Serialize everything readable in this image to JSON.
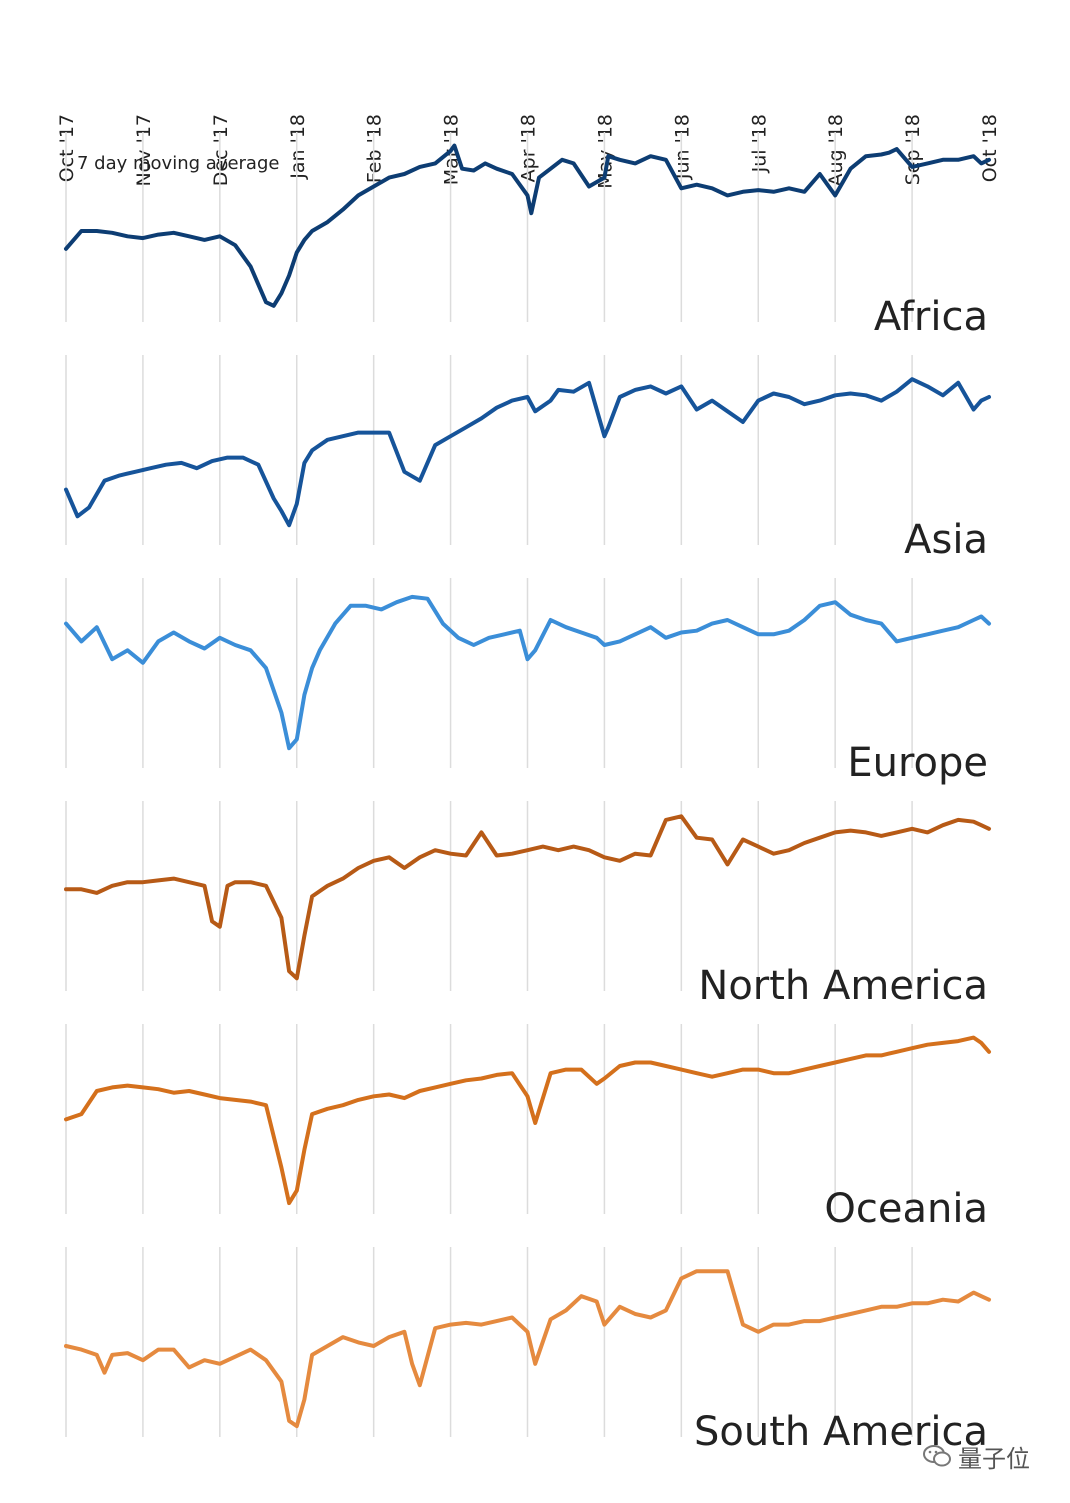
{
  "chart_data": {
    "type": "line",
    "note": "7 day moving average",
    "x_labels": [
      "Oct '17",
      "Nov '17",
      "Dec '17",
      "Jan '18",
      "Feb '18",
      "Mar '18",
      "Apr '18",
      "May '18",
      "Jun '18",
      "Jul '18",
      "Aug '18",
      "Sep '18",
      "Oct '18"
    ],
    "grid": "vertical",
    "y_range": [
      0,
      1
    ],
    "series": [
      {
        "name": "Africa",
        "color": "#0d3d73",
        "x": [
          0,
          0.2,
          0.4,
          0.6,
          0.8,
          1.0,
          1.2,
          1.4,
          1.6,
          1.8,
          2.0,
          2.2,
          2.4,
          2.6,
          2.7,
          2.8,
          2.9,
          3.0,
          3.1,
          3.2,
          3.4,
          3.6,
          3.8,
          4.0,
          4.2,
          4.4,
          4.6,
          4.8,
          5.0,
          5.05,
          5.15,
          5.3,
          5.45,
          5.6,
          5.8,
          6.0,
          6.05,
          6.15,
          6.3,
          6.45,
          6.6,
          6.8,
          7.0,
          7.05,
          7.2,
          7.4,
          7.6,
          7.8,
          8.0,
          8.2,
          8.4,
          8.6,
          8.8,
          9.0,
          9.2,
          9.4,
          9.6,
          9.8,
          10.0,
          10.2,
          10.4,
          10.6,
          10.7,
          10.8,
          11.0,
          11.2,
          11.4,
          11.6,
          11.8,
          11.9,
          12.0
        ],
        "y": [
          0.4,
          0.5,
          0.5,
          0.49,
          0.47,
          0.46,
          0.48,
          0.49,
          0.47,
          0.45,
          0.47,
          0.42,
          0.3,
          0.1,
          0.08,
          0.15,
          0.25,
          0.38,
          0.45,
          0.5,
          0.55,
          0.62,
          0.7,
          0.75,
          0.8,
          0.82,
          0.86,
          0.88,
          0.95,
          0.98,
          0.85,
          0.84,
          0.88,
          0.85,
          0.82,
          0.7,
          0.6,
          0.8,
          0.85,
          0.9,
          0.88,
          0.75,
          0.8,
          0.92,
          0.9,
          0.88,
          0.92,
          0.9,
          0.74,
          0.76,
          0.74,
          0.7,
          0.72,
          0.73,
          0.72,
          0.74,
          0.72,
          0.82,
          0.7,
          0.85,
          0.92,
          0.93,
          0.94,
          0.96,
          0.86,
          0.88,
          0.9,
          0.9,
          0.92,
          0.88,
          0.9
        ]
      },
      {
        "name": "Asia",
        "color": "#16549a",
        "x": [
          0,
          0.15,
          0.3,
          0.5,
          0.7,
          0.9,
          1.1,
          1.3,
          1.5,
          1.7,
          1.9,
          2.1,
          2.3,
          2.5,
          2.7,
          2.8,
          2.9,
          3.0,
          3.1,
          3.2,
          3.4,
          3.6,
          3.8,
          4.0,
          4.2,
          4.4,
          4.6,
          4.8,
          5.0,
          5.2,
          5.4,
          5.6,
          5.8,
          6.0,
          6.1,
          6.3,
          6.4,
          6.6,
          6.8,
          7.0,
          7.05,
          7.2,
          7.4,
          7.6,
          7.8,
          8.0,
          8.2,
          8.4,
          8.6,
          8.8,
          9.0,
          9.2,
          9.4,
          9.6,
          9.8,
          10.0,
          10.2,
          10.4,
          10.6,
          10.8,
          11.0,
          11.2,
          11.4,
          11.6,
          11.8,
          11.9,
          12.0
        ],
        "y": [
          0.3,
          0.15,
          0.2,
          0.35,
          0.38,
          0.4,
          0.42,
          0.44,
          0.45,
          0.42,
          0.46,
          0.48,
          0.48,
          0.44,
          0.25,
          0.18,
          0.1,
          0.22,
          0.45,
          0.52,
          0.58,
          0.6,
          0.62,
          0.62,
          0.62,
          0.4,
          0.35,
          0.55,
          0.6,
          0.65,
          0.7,
          0.76,
          0.8,
          0.82,
          0.74,
          0.8,
          0.86,
          0.85,
          0.9,
          0.6,
          0.65,
          0.82,
          0.86,
          0.88,
          0.84,
          0.88,
          0.75,
          0.8,
          0.74,
          0.68,
          0.8,
          0.84,
          0.82,
          0.78,
          0.8,
          0.83,
          0.84,
          0.83,
          0.8,
          0.85,
          0.92,
          0.88,
          0.83,
          0.9,
          0.75,
          0.8,
          0.82
        ]
      },
      {
        "name": "Europe",
        "color": "#3b8ed8",
        "x": [
          0,
          0.2,
          0.4,
          0.6,
          0.8,
          1.0,
          1.2,
          1.4,
          1.6,
          1.8,
          2.0,
          2.2,
          2.4,
          2.6,
          2.8,
          2.9,
          3.0,
          3.1,
          3.2,
          3.3,
          3.5,
          3.7,
          3.9,
          4.1,
          4.3,
          4.5,
          4.7,
          4.9,
          5.1,
          5.3,
          5.5,
          5.7,
          5.9,
          6.0,
          6.1,
          6.3,
          6.5,
          6.7,
          6.9,
          7.0,
          7.2,
          7.4,
          7.6,
          7.8,
          8.0,
          8.2,
          8.4,
          8.6,
          8.8,
          9.0,
          9.2,
          9.4,
          9.6,
          9.8,
          10.0,
          10.2,
          10.4,
          10.6,
          10.8,
          11.0,
          11.2,
          11.4,
          11.6,
          11.8,
          11.9,
          12.0
        ],
        "y": [
          0.8,
          0.7,
          0.78,
          0.6,
          0.65,
          0.58,
          0.7,
          0.75,
          0.7,
          0.66,
          0.72,
          0.68,
          0.65,
          0.55,
          0.3,
          0.1,
          0.15,
          0.4,
          0.55,
          0.65,
          0.8,
          0.9,
          0.9,
          0.88,
          0.92,
          0.95,
          0.94,
          0.8,
          0.72,
          0.68,
          0.72,
          0.74,
          0.76,
          0.6,
          0.65,
          0.82,
          0.78,
          0.75,
          0.72,
          0.68,
          0.7,
          0.74,
          0.78,
          0.72,
          0.75,
          0.76,
          0.8,
          0.82,
          0.78,
          0.74,
          0.74,
          0.76,
          0.82,
          0.9,
          0.92,
          0.85,
          0.82,
          0.8,
          0.7,
          0.72,
          0.74,
          0.76,
          0.78,
          0.82,
          0.84,
          0.8
        ]
      },
      {
        "name": "North America",
        "color": "#b75a16",
        "x": [
          0,
          0.2,
          0.4,
          0.6,
          0.8,
          1.0,
          1.2,
          1.4,
          1.6,
          1.8,
          1.9,
          2.0,
          2.1,
          2.2,
          2.4,
          2.6,
          2.8,
          2.9,
          3.0,
          3.1,
          3.2,
          3.4,
          3.6,
          3.8,
          4.0,
          4.2,
          4.4,
          4.6,
          4.8,
          5.0,
          5.2,
          5.4,
          5.6,
          5.8,
          6.0,
          6.2,
          6.4,
          6.6,
          6.8,
          7.0,
          7.2,
          7.4,
          7.6,
          7.8,
          8.0,
          8.2,
          8.4,
          8.6,
          8.8,
          9.0,
          9.2,
          9.4,
          9.6,
          9.8,
          10.0,
          10.2,
          10.4,
          10.6,
          10.8,
          11.0,
          11.2,
          11.4,
          11.6,
          11.8,
          11.9,
          12.0
        ],
        "y": [
          0.56,
          0.56,
          0.54,
          0.58,
          0.6,
          0.6,
          0.61,
          0.62,
          0.6,
          0.58,
          0.38,
          0.35,
          0.58,
          0.6,
          0.6,
          0.58,
          0.4,
          0.1,
          0.06,
          0.3,
          0.52,
          0.58,
          0.62,
          0.68,
          0.72,
          0.74,
          0.68,
          0.74,
          0.78,
          0.76,
          0.75,
          0.88,
          0.75,
          0.76,
          0.78,
          0.8,
          0.78,
          0.8,
          0.78,
          0.74,
          0.72,
          0.76,
          0.75,
          0.95,
          0.97,
          0.85,
          0.84,
          0.7,
          0.84,
          0.8,
          0.76,
          0.78,
          0.82,
          0.85,
          0.88,
          0.89,
          0.88,
          0.86,
          0.88,
          0.9,
          0.88,
          0.92,
          0.95,
          0.94,
          0.92,
          0.9
        ]
      },
      {
        "name": "Oceania",
        "color": "#d4701c",
        "x": [
          0,
          0.2,
          0.4,
          0.6,
          0.8,
          1.0,
          1.2,
          1.4,
          1.6,
          1.8,
          2.0,
          2.2,
          2.4,
          2.6,
          2.8,
          2.9,
          3.0,
          3.1,
          3.2,
          3.4,
          3.6,
          3.8,
          4.0,
          4.2,
          4.4,
          4.6,
          4.8,
          5.0,
          5.2,
          5.4,
          5.6,
          5.8,
          6.0,
          6.1,
          6.3,
          6.5,
          6.7,
          6.9,
          7.0,
          7.2,
          7.4,
          7.6,
          7.8,
          8.0,
          8.2,
          8.4,
          8.6,
          8.8,
          9.0,
          9.2,
          9.4,
          9.6,
          9.8,
          10.0,
          10.2,
          10.4,
          10.6,
          10.8,
          11.0,
          11.2,
          11.4,
          11.6,
          11.8,
          11.9,
          12.0
        ],
        "y": [
          0.52,
          0.55,
          0.68,
          0.7,
          0.71,
          0.7,
          0.69,
          0.67,
          0.68,
          0.66,
          0.64,
          0.63,
          0.62,
          0.6,
          0.25,
          0.05,
          0.12,
          0.35,
          0.55,
          0.58,
          0.6,
          0.63,
          0.65,
          0.66,
          0.64,
          0.68,
          0.7,
          0.72,
          0.74,
          0.75,
          0.77,
          0.78,
          0.65,
          0.5,
          0.78,
          0.8,
          0.8,
          0.72,
          0.75,
          0.82,
          0.84,
          0.84,
          0.82,
          0.8,
          0.78,
          0.76,
          0.78,
          0.8,
          0.8,
          0.78,
          0.78,
          0.8,
          0.82,
          0.84,
          0.86,
          0.88,
          0.88,
          0.9,
          0.92,
          0.94,
          0.95,
          0.96,
          0.98,
          0.95,
          0.9
        ]
      },
      {
        "name": "South America",
        "color": "#e58a3f",
        "x": [
          0,
          0.2,
          0.4,
          0.5,
          0.6,
          0.8,
          1.0,
          1.2,
          1.4,
          1.6,
          1.8,
          2.0,
          2.2,
          2.4,
          2.6,
          2.8,
          2.9,
          3.0,
          3.1,
          3.2,
          3.4,
          3.6,
          3.8,
          4.0,
          4.2,
          4.4,
          4.5,
          4.6,
          4.8,
          5.0,
          5.2,
          5.4,
          5.6,
          5.8,
          6.0,
          6.1,
          6.3,
          6.5,
          6.7,
          6.9,
          7.0,
          7.2,
          7.4,
          7.6,
          7.8,
          8.0,
          8.2,
          8.4,
          8.6,
          8.8,
          9.0,
          9.2,
          9.4,
          9.6,
          9.8,
          10.0,
          10.2,
          10.4,
          10.6,
          10.8,
          11.0,
          11.2,
          11.4,
          11.6,
          11.8,
          11.9,
          12.0
        ],
        "y": [
          0.5,
          0.48,
          0.45,
          0.35,
          0.45,
          0.46,
          0.42,
          0.48,
          0.48,
          0.38,
          0.42,
          0.4,
          0.44,
          0.48,
          0.42,
          0.3,
          0.08,
          0.05,
          0.2,
          0.45,
          0.5,
          0.55,
          0.52,
          0.5,
          0.55,
          0.58,
          0.4,
          0.28,
          0.6,
          0.62,
          0.63,
          0.62,
          0.64,
          0.66,
          0.58,
          0.4,
          0.65,
          0.7,
          0.78,
          0.75,
          0.62,
          0.72,
          0.68,
          0.66,
          0.7,
          0.88,
          0.92,
          0.92,
          0.92,
          0.62,
          0.58,
          0.62,
          0.62,
          0.64,
          0.64,
          0.66,
          0.68,
          0.7,
          0.72,
          0.72,
          0.74,
          0.74,
          0.76,
          0.75,
          0.8,
          0.78,
          0.76
        ]
      }
    ]
  },
  "watermark": {
    "text": "量子位"
  }
}
